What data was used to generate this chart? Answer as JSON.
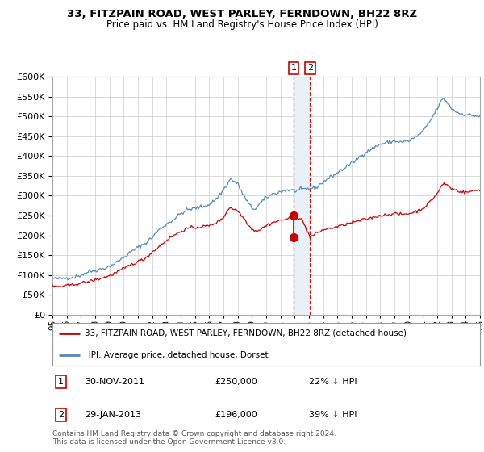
{
  "title": "33, FITZPAIN ROAD, WEST PARLEY, FERNDOWN, BH22 8RZ",
  "subtitle": "Price paid vs. HM Land Registry's House Price Index (HPI)",
  "legend_line1": "33, FITZPAIN ROAD, WEST PARLEY, FERNDOWN, BH22 8RZ (detached house)",
  "legend_line2": "HPI: Average price, detached house, Dorset",
  "annotation1_date": "30-NOV-2011",
  "annotation1_price": "£250,000",
  "annotation1_hpi": "22% ↓ HPI",
  "annotation2_date": "29-JAN-2013",
  "annotation2_price": "£196,000",
  "annotation2_hpi": "39% ↓ HPI",
  "footnote": "Contains HM Land Registry data © Crown copyright and database right 2024.\nThis data is licensed under the Open Government Licence v3.0.",
  "hpi_color": "#5588bb",
  "price_color": "#cc0000",
  "marker_color": "#cc0000",
  "highlight_color": "#e8f0f8",
  "dashed_line_color": "#cc0000",
  "ylim": [
    0,
    600000
  ],
  "yticks": [
    0,
    50000,
    100000,
    150000,
    200000,
    250000,
    300000,
    350000,
    400000,
    450000,
    500000,
    550000,
    600000
  ],
  "background_color": "#ffffff",
  "grid_color": "#cccccc",
  "sale1_t": 2011.917,
  "sale1_v": 250000,
  "sale2_t": 2013.083,
  "sale2_v": 196000
}
